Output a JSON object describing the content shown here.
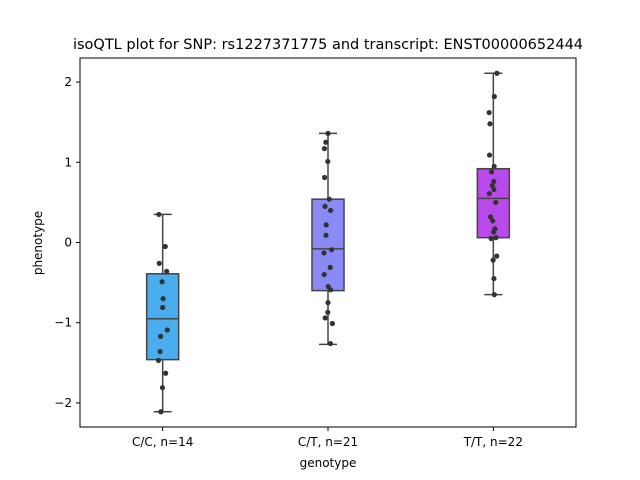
{
  "chart_data": {
    "type": "box",
    "title": "isoQTL plot for SNP: rs1227371775 and transcript: ENST00000652444",
    "xlabel": "genotype",
    "ylabel": "phenotype",
    "ylim": [
      -2.3,
      2.3
    ],
    "yticks": [
      -2,
      -1,
      0,
      1,
      2
    ],
    "yticklabels": [
      "−2",
      "−1",
      "0",
      "1",
      "2"
    ],
    "grid": false,
    "categories": [
      "C/C, n=14",
      "C/T, n=21",
      "T/T, n=22"
    ],
    "colors": [
      "#4aaded",
      "#8a8af5",
      "#b84aec"
    ],
    "boxes": [
      {
        "q1": -1.46,
        "median": -0.95,
        "q3": -0.39,
        "whisker_low": -2.11,
        "whisker_high": 0.35
      },
      {
        "q1": -0.6,
        "median": -0.08,
        "q3": 0.54,
        "whisker_low": -1.27,
        "whisker_high": 1.36
      },
      {
        "q1": 0.06,
        "median": 0.55,
        "q3": 0.92,
        "whisker_low": -0.65,
        "whisker_high": 2.11
      }
    ],
    "points": [
      [
        {
          "x": -0.19,
          "y": 0.35
        },
        {
          "x": 0.13,
          "y": -0.05
        },
        {
          "x": -0.17,
          "y": -0.26
        },
        {
          "x": 0.2,
          "y": -0.36
        },
        {
          "x": -0.03,
          "y": -0.49
        },
        {
          "x": 0.02,
          "y": -0.7
        },
        {
          "x": 0.0,
          "y": -0.81
        },
        {
          "x": 0.23,
          "y": -1.09
        },
        {
          "x": -0.1,
          "y": -1.17
        },
        {
          "x": -0.13,
          "y": -1.36
        },
        {
          "x": -0.21,
          "y": -1.47
        },
        {
          "x": 0.15,
          "y": -1.63
        },
        {
          "x": -0.01,
          "y": -1.81
        },
        {
          "x": -0.09,
          "y": -2.11
        }
      ],
      [
        {
          "x": 0.0,
          "y": 1.36
        },
        {
          "x": -0.11,
          "y": 1.25
        },
        {
          "x": -0.18,
          "y": 1.17
        },
        {
          "x": -0.01,
          "y": 1.01
        },
        {
          "x": -0.17,
          "y": 0.81
        },
        {
          "x": 0.06,
          "y": 0.54
        },
        {
          "x": -0.15,
          "y": 0.45
        },
        {
          "x": 0.13,
          "y": 0.4
        },
        {
          "x": -0.09,
          "y": 0.22
        },
        {
          "x": -0.1,
          "y": 0.09
        },
        {
          "x": 0.18,
          "y": -0.09
        },
        {
          "x": -0.2,
          "y": -0.13
        },
        {
          "x": 0.11,
          "y": -0.31
        },
        {
          "x": -0.19,
          "y": -0.4
        },
        {
          "x": 0.01,
          "y": -0.55
        },
        {
          "x": 0.13,
          "y": -0.59
        },
        {
          "x": 0.0,
          "y": -0.75
        },
        {
          "x": -0.01,
          "y": -0.87
        },
        {
          "x": -0.14,
          "y": -0.94
        },
        {
          "x": 0.22,
          "y": -1.01
        },
        {
          "x": 0.12,
          "y": -1.26
        }
      ],
      [
        {
          "x": 0.18,
          "y": 2.11
        },
        {
          "x": 0.05,
          "y": 1.82
        },
        {
          "x": -0.21,
          "y": 1.62
        },
        {
          "x": -0.17,
          "y": 1.48
        },
        {
          "x": -0.19,
          "y": 1.09
        },
        {
          "x": 0.04,
          "y": 0.95
        },
        {
          "x": -0.09,
          "y": 0.88
        },
        {
          "x": 0.02,
          "y": 0.76
        },
        {
          "x": -0.05,
          "y": 0.71
        },
        {
          "x": 0.03,
          "y": 0.66
        },
        {
          "x": -0.2,
          "y": 0.61
        },
        {
          "x": 0.12,
          "y": 0.5
        },
        {
          "x": -0.14,
          "y": 0.32
        },
        {
          "x": -0.03,
          "y": 0.27
        },
        {
          "x": 0.08,
          "y": 0.17
        },
        {
          "x": 0.02,
          "y": 0.13
        },
        {
          "x": 0.13,
          "y": 0.06
        },
        {
          "x": -0.11,
          "y": 0.05
        },
        {
          "x": 0.17,
          "y": -0.17
        },
        {
          "x": -0.01,
          "y": -0.22
        },
        {
          "x": 0.03,
          "y": -0.45
        },
        {
          "x": 0.05,
          "y": -0.65
        }
      ]
    ]
  }
}
